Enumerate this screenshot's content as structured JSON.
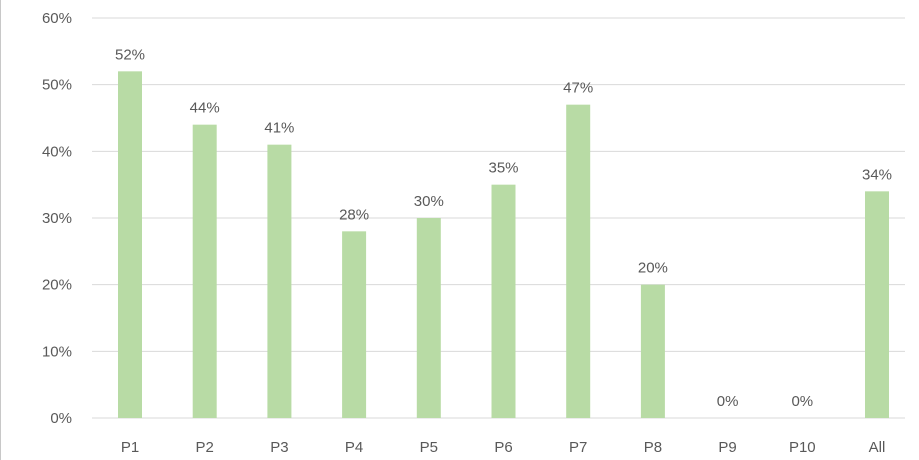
{
  "chart_data": {
    "type": "bar",
    "categories": [
      "P1",
      "P2",
      "P3",
      "P4",
      "P5",
      "P6",
      "P7",
      "P8",
      "P9",
      "P10",
      "All"
    ],
    "values": [
      52,
      44,
      41,
      28,
      30,
      35,
      47,
      20,
      0,
      0,
      34
    ],
    "data_labels": [
      "52%",
      "44%",
      "41%",
      "28%",
      "30%",
      "35%",
      "47%",
      "20%",
      "0%",
      "0%",
      "34%"
    ],
    "y_ticks": [
      0,
      10,
      20,
      30,
      40,
      50,
      60
    ],
    "y_tick_labels": [
      "0%",
      "10%",
      "20%",
      "30%",
      "40%",
      "50%",
      "60%"
    ],
    "ylim": [
      0,
      60
    ],
    "title": "",
    "xlabel": "",
    "ylabel": "",
    "grid": true,
    "legend": "none",
    "colors": {
      "bar": "#b8dba5",
      "grid": "#d9d9d9",
      "label": "#595959"
    }
  }
}
